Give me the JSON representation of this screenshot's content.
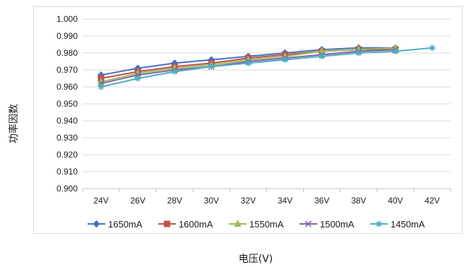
{
  "chart_data": {
    "type": "line",
    "title": "",
    "xlabel": "电压(V)",
    "ylabel": "功率因数",
    "categories": [
      "24V",
      "26V",
      "28V",
      "30V",
      "32V",
      "34V",
      "36V",
      "38V",
      "40V",
      "42V"
    ],
    "ylim": [
      0.9,
      1.0
    ],
    "yticks": [
      "0.900",
      "0.910",
      "0.920",
      "0.930",
      "0.940",
      "0.950",
      "0.960",
      "0.970",
      "0.980",
      "0.990",
      "1.000"
    ],
    "grid": true,
    "legend_position": "bottom",
    "series": [
      {
        "name": "1650mA",
        "color": "#4472c4",
        "marker": "diamond",
        "values": [
          0.967,
          0.971,
          0.974,
          0.976,
          0.978,
          0.98,
          0.982,
          0.983,
          0.983,
          null
        ]
      },
      {
        "name": "1600mA",
        "color": "#c0504d",
        "marker": "square",
        "values": [
          0.965,
          0.969,
          0.972,
          0.974,
          0.977,
          0.979,
          0.981,
          0.982,
          0.982,
          null
        ]
      },
      {
        "name": "1550mA",
        "color": "#9bbb59",
        "marker": "triangle",
        "values": [
          0.963,
          0.968,
          0.971,
          0.973,
          0.976,
          0.978,
          0.981,
          0.982,
          0.983,
          null
        ]
      },
      {
        "name": "1500mA",
        "color": "#8064a2",
        "marker": "x",
        "values": [
          0.962,
          0.967,
          0.97,
          0.972,
          0.975,
          0.977,
          0.979,
          0.981,
          0.982,
          null
        ]
      },
      {
        "name": "1450mA",
        "color": "#4bacc6",
        "marker": "star",
        "values": [
          0.96,
          0.965,
          0.969,
          0.972,
          0.974,
          0.976,
          0.978,
          0.98,
          0.981,
          0.983
        ]
      }
    ]
  }
}
